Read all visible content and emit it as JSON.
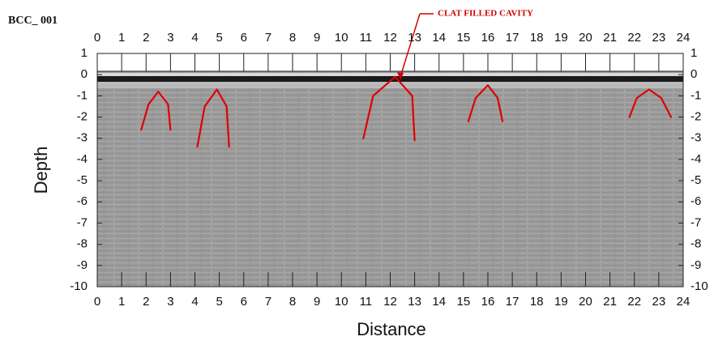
{
  "chart_data": {
    "type": "radargram",
    "title": "BCC_ 001",
    "annotation": "CLAT FILLED CAVITY",
    "x_label": "Distance",
    "y_label": "Depth",
    "xlim": [
      0,
      24
    ],
    "ylim": [
      -10,
      1
    ],
    "xticks": [
      0,
      1,
      2,
      3,
      4,
      5,
      6,
      7,
      8,
      9,
      10,
      11,
      12,
      13,
      14,
      15,
      16,
      17,
      18,
      19,
      20,
      21,
      22,
      23,
      24
    ],
    "yticks": [
      1,
      0,
      -1,
      -2,
      -3,
      -4,
      -5,
      -6,
      -7,
      -8,
      -9,
      -10
    ],
    "series": [
      {
        "color": "#e00000",
        "x": [
          1.8,
          2.1,
          2.5,
          2.9,
          3.0
        ],
        "values": [
          -2.6,
          -1.4,
          -0.8,
          -1.4,
          -2.6
        ]
      },
      {
        "color": "#e00000",
        "x": [
          4.1,
          4.4,
          4.9,
          5.3,
          5.4
        ],
        "values": [
          -3.4,
          -1.5,
          -0.7,
          -1.5,
          -3.4
        ]
      },
      {
        "color": "#e00000",
        "x": [
          10.9,
          11.3,
          12.2,
          12.9,
          13.0
        ],
        "values": [
          -3.0,
          -1.0,
          -0.1,
          -1.0,
          -3.1
        ]
      },
      {
        "color": "#e00000",
        "x": [
          15.2,
          15.5,
          16.0,
          16.4,
          16.6
        ],
        "values": [
          -2.2,
          -1.1,
          -0.5,
          -1.1,
          -2.2
        ]
      },
      {
        "color": "#e00000",
        "x": [
          21.8,
          22.1,
          22.6,
          23.1,
          23.5
        ],
        "values": [
          -2.0,
          -1.1,
          -0.7,
          -1.1,
          -2.0
        ]
      }
    ]
  }
}
